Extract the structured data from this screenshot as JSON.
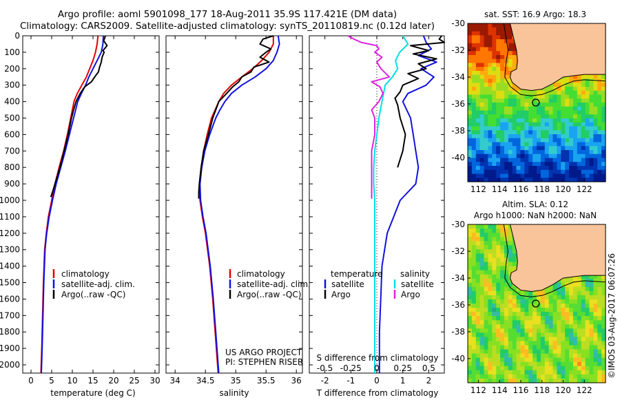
{
  "title_line1": "Argo profile: aoml 5901098_177 18-Aug-2011 35.9S 117.421E (DM data)",
  "title_line2": "Climatology: CARS2009. Satellite-adjusted climatology: synTS_20110819.nc (0.12d later)",
  "colors": {
    "climatology": "#e00000",
    "satellite": "#1010e0",
    "argo": "#000000",
    "sal_satellite": "#00e0e0",
    "sal_argo": "#e020e0",
    "land": "#f9c49a"
  },
  "chart_data": [
    {
      "type": "line",
      "xlabel": "temperature (deg C)",
      "xticks": [
        0,
        5,
        10,
        15,
        20,
        25,
        30
      ],
      "xlim": [
        -2,
        31
      ],
      "ylim": [
        0,
        2050
      ],
      "yticks": [
        0,
        100,
        200,
        300,
        400,
        500,
        600,
        700,
        800,
        900,
        1000,
        1100,
        1200,
        1300,
        1400,
        1500,
        1600,
        1700,
        1800,
        1900,
        2000
      ],
      "legend": [
        "climatology",
        "satellite-adj. clim.",
        "Argo(..raw -QC)"
      ],
      "series": [
        {
          "name": "climatology",
          "color": "#e00000",
          "y": [
            0,
            50,
            100,
            150,
            200,
            250,
            300,
            350,
            400,
            450,
            500,
            600,
            700,
            800,
            900,
            1000,
            1100,
            1200,
            1300,
            1500,
            1700,
            1900,
            2050
          ],
          "x": [
            16.2,
            16.0,
            15.6,
            15.0,
            14.2,
            13.4,
            12.3,
            11.2,
            10.4,
            10.0,
            9.6,
            8.8,
            7.9,
            6.8,
            5.8,
            5.0,
            4.2,
            3.7,
            3.3,
            3.0,
            2.8,
            2.6,
            2.4
          ]
        },
        {
          "name": "satellite-adj. clim.",
          "color": "#1010e0",
          "y": [
            0,
            50,
            100,
            150,
            200,
            250,
            300,
            350,
            400,
            450,
            500,
            600,
            700,
            800,
            900,
            1000,
            1100,
            1200,
            1300,
            1500,
            1700,
            1900,
            2050
          ],
          "x": [
            17.5,
            17.4,
            17.0,
            16.0,
            15.0,
            14.0,
            13.2,
            12.2,
            11.3,
            10.8,
            10.3,
            9.3,
            8.3,
            7.2,
            6.1,
            5.2,
            4.4,
            3.8,
            3.4,
            3.1,
            2.9,
            2.7,
            2.5
          ]
        },
        {
          "name": "Argo(..raw -QC)",
          "color": "#000000",
          "y": [
            0,
            30,
            60,
            90,
            100,
            130,
            160,
            190,
            220,
            250,
            280,
            310,
            350,
            400,
            450,
            500,
            600,
            700,
            800,
            900,
            950,
            980
          ],
          "x": [
            18.0,
            17.6,
            18.4,
            17.4,
            17.7,
            17.2,
            17.0,
            16.6,
            16.3,
            15.4,
            14.6,
            13.0,
            11.9,
            10.9,
            10.3,
            9.8,
            9.0,
            8.0,
            7.0,
            5.8,
            5.2,
            4.8
          ]
        }
      ]
    },
    {
      "type": "line",
      "xlabel": "salinity",
      "xticks": [
        34,
        34.5,
        35,
        35.5,
        36
      ],
      "xlim": [
        33.85,
        36.1
      ],
      "ylim": [
        0,
        2050
      ],
      "legend": [
        "climatology",
        "satellite-adj. clim.",
        "Argo(..raw -QC)"
      ],
      "annotation": [
        "US ARGO PROJECT",
        "PI: STEPHEN RISER"
      ],
      "series": [
        {
          "name": "climatology",
          "color": "#e00000",
          "y": [
            0,
            50,
            100,
            150,
            200,
            250,
            300,
            350,
            400,
            450,
            500,
            600,
            700,
            800,
            900,
            1000,
            1100,
            1200,
            1400,
            1600,
            1800,
            2000,
            2050
          ],
          "x": [
            35.62,
            35.62,
            35.55,
            35.43,
            35.28,
            35.1,
            34.93,
            34.8,
            34.72,
            34.66,
            34.6,
            34.53,
            34.47,
            34.43,
            34.4,
            34.41,
            34.45,
            34.5,
            34.57,
            34.62,
            34.66,
            34.7,
            34.71
          ]
        },
        {
          "name": "satellite-adj. clim.",
          "color": "#1010e0",
          "y": [
            0,
            50,
            100,
            150,
            200,
            250,
            300,
            350,
            400,
            450,
            500,
            600,
            700,
            800,
            900,
            1000,
            1100,
            1200,
            1400,
            1600,
            1800,
            2000,
            2050
          ],
          "x": [
            35.7,
            35.72,
            35.68,
            35.62,
            35.5,
            35.32,
            35.1,
            34.93,
            34.82,
            34.74,
            34.67,
            34.57,
            34.49,
            34.44,
            34.41,
            34.42,
            34.46,
            34.51,
            34.58,
            34.63,
            34.67,
            34.71,
            34.72
          ]
        },
        {
          "name": "Argo(..raw -QC)",
          "color": "#000000",
          "y": [
            0,
            20,
            50,
            80,
            100,
            130,
            160,
            190,
            220,
            250,
            280,
            310,
            350,
            400,
            450,
            500,
            600,
            700,
            800,
            900,
            950,
            990
          ],
          "x": [
            35.62,
            35.45,
            35.4,
            35.58,
            35.5,
            35.4,
            35.55,
            35.3,
            35.25,
            35.1,
            35.05,
            34.95,
            34.85,
            34.72,
            34.67,
            34.62,
            34.55,
            34.47,
            34.43,
            34.4,
            34.39,
            34.39
          ]
        }
      ]
    },
    {
      "type": "line",
      "xlabel": "T difference from climatology",
      "xlabel2": "S difference from climatology",
      "xticks": [
        -2,
        -1,
        0,
        1,
        2
      ],
      "xlim": [
        -2.6,
        2.6
      ],
      "xticks2": [
        -0.5,
        -0.25,
        0,
        0.25,
        0.5
      ],
      "xticks2_labels": [
        "-0.5",
        "-0.25",
        "0",
        "0.25",
        "0.5"
      ],
      "ylim": [
        0,
        2050
      ],
      "legend_temperature": {
        "title": "temperature",
        "items": [
          "satellite",
          "Argo"
        ]
      },
      "legend_salinity": {
        "title": "salinity",
        "items": [
          "satellite",
          "Argo"
        ]
      },
      "series": [
        {
          "name": "satellite",
          "group": "temperature",
          "color": "#1010e0",
          "y": [
            0,
            40,
            80,
            120,
            160,
            200,
            250,
            300,
            350,
            400,
            500,
            600,
            700,
            800,
            900,
            1000,
            1200,
            1400,
            1600,
            1800,
            2000,
            2050
          ],
          "x": [
            1.8,
            1.9,
            2.1,
            1.6,
            2.3,
            1.7,
            2.2,
            1.9,
            1.2,
            1.0,
            1.3,
            1.4,
            1.5,
            1.6,
            1.5,
            0.9,
            0.4,
            0.2,
            0.15,
            0.1,
            0.1,
            0.1
          ]
        },
        {
          "name": "Argo",
          "group": "temperature",
          "color": "#000000",
          "y": [
            0,
            20,
            40,
            60,
            90,
            110,
            140,
            170,
            200,
            230,
            260,
            300,
            340,
            380,
            420,
            500,
            600,
            700,
            750,
            800
          ],
          "x": [
            2.5,
            2.4,
            2.6,
            1.3,
            2.0,
            1.4,
            2.3,
            1.6,
            1.9,
            1.2,
            1.6,
            1.0,
            0.9,
            0.7,
            0.8,
            0.9,
            1.1,
            1.0,
            0.9,
            0.8
          ]
        },
        {
          "name": "satellite",
          "group": "salinity",
          "color": "#00e0e0",
          "y": [
            0,
            50,
            100,
            150,
            200,
            250,
            300,
            400,
            500,
            600,
            700,
            800,
            900,
            1000,
            1200,
            1400,
            1600,
            1800,
            2000,
            2050
          ],
          "x": [
            0.25,
            0.3,
            0.22,
            0.18,
            0.2,
            0.15,
            0.08,
            0.05,
            0.02,
            0.0,
            -0.02,
            -0.03,
            -0.03,
            -0.02,
            -0.02,
            -0.02,
            -0.02,
            -0.02,
            -0.02,
            -0.02
          ]
        },
        {
          "name": "Argo",
          "group": "salinity",
          "color": "#e020e0",
          "y": [
            0,
            20,
            40,
            60,
            80,
            100,
            130,
            160,
            200,
            250,
            280,
            310,
            350,
            400,
            450,
            500,
            600,
            700,
            800,
            900,
            990
          ],
          "x": [
            -0.28,
            -0.22,
            -0.15,
            0.0,
            0.02,
            -0.02,
            0.05,
            0.0,
            0.04,
            0.12,
            -0.05,
            0.03,
            0.06,
            0.02,
            -0.05,
            -0.02,
            -0.02,
            -0.05,
            -0.05,
            -0.05,
            -0.05
          ]
        }
      ]
    },
    {
      "type": "heatmap",
      "title": "sat. SST: 16.9 Argo: 18.3",
      "xticks": [
        112,
        114,
        116,
        118,
        120,
        122
      ],
      "yticks": [
        -30,
        -32,
        -34,
        -36,
        -38,
        -40
      ],
      "xlim": [
        111,
        124
      ],
      "ylim": [
        -41.8,
        -30
      ],
      "argo_position": {
        "lon": 117.42,
        "lat": -35.9
      }
    },
    {
      "type": "heatmap",
      "title": "Altim. SLA: 0.12",
      "subtitle": "Argo h1000: NaN h2000: NaN",
      "xticks": [
        112,
        114,
        116,
        118,
        120,
        122
      ],
      "yticks": [
        -30,
        -32,
        -34,
        -36,
        -38,
        -40
      ],
      "xlim": [
        111,
        124
      ],
      "ylim": [
        -41.8,
        -30
      ],
      "argo_position": {
        "lon": 117.42,
        "lat": -35.9
      }
    }
  ],
  "credit": "©IMOS 03-Aug-2017 06:07:26"
}
